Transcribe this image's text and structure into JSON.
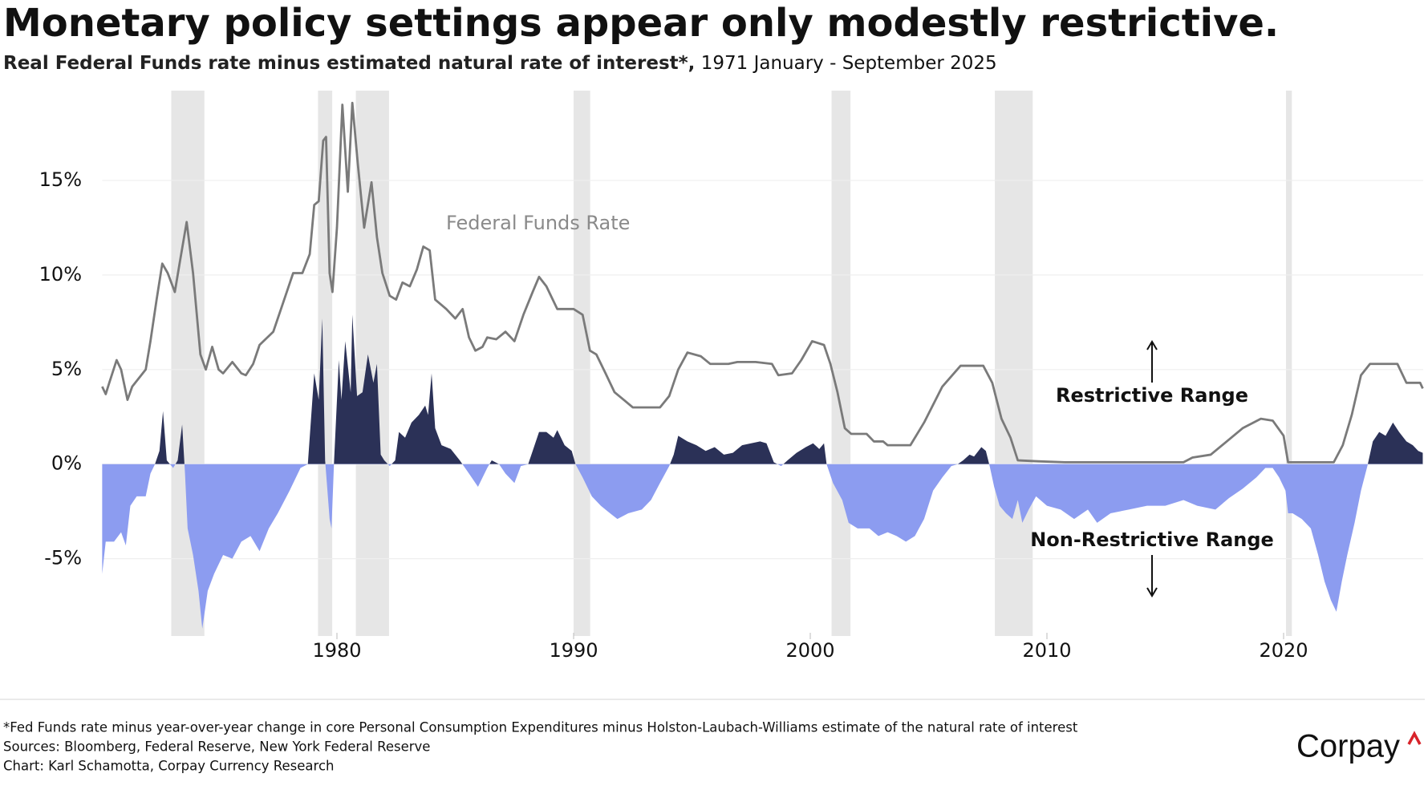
{
  "chart_data": {
    "type": "line",
    "title": "Monetary policy settings appear only modestly restrictive.",
    "subtitle": [
      "Real Federal Funds rate minus estimated natural rate of interest*,",
      "1971 January - September 2025"
    ],
    "xlim": [
      1970,
      2026
    ],
    "xticks": [
      1980,
      1990,
      2000,
      2010,
      2020
    ],
    "ylim": [
      -9,
      20
    ],
    "yticks": [
      {
        "value": -5,
        "label": "-5%"
      },
      {
        "value": 0,
        "label": "0%"
      },
      {
        "value": 5,
        "label": "5%"
      },
      {
        "value": 10,
        "label": "10%"
      },
      {
        "value": 15,
        "label": "15%"
      }
    ],
    "grid": true,
    "recession_color": "#e6e6e6",
    "recessions": [
      [
        1973.0,
        1974.4
      ],
      [
        1979.2,
        1979.8
      ],
      [
        1980.8,
        1982.2
      ],
      [
        1990.0,
        1990.7
      ],
      [
        2000.9,
        2001.7
      ],
      [
        2007.8,
        2009.4
      ],
      [
        2020.1,
        2020.35
      ]
    ],
    "series": [
      {
        "name": "Federal Funds Rate",
        "type": "line",
        "color": "#7a7a7a",
        "x": [
          1970.08,
          1970.23,
          1970.38,
          1970.69,
          1970.88,
          1971.15,
          1971.35,
          1971.92,
          1972.12,
          1972.38,
          1972.62,
          1972.85,
          1973.15,
          1973.35,
          1973.65,
          1973.92,
          1974.23,
          1974.46,
          1974.73,
          1975.0,
          1975.19,
          1975.58,
          1975.96,
          1976.15,
          1976.46,
          1976.73,
          1977.31,
          1977.88,
          1978.15,
          1978.54,
          1978.85,
          1979.04,
          1979.23,
          1979.42,
          1979.54,
          1979.69,
          1979.81,
          1980.0,
          1980.23,
          1980.46,
          1980.65,
          1980.88,
          1981.15,
          1981.46,
          1981.69,
          1981.92,
          1982.23,
          1982.5,
          1982.77,
          1983.08,
          1983.38,
          1983.65,
          1983.92,
          1984.15,
          1984.62,
          1985.0,
          1985.31,
          1985.58,
          1985.85,
          1986.15,
          1986.35,
          1986.73,
          1987.12,
          1987.5,
          1987.88,
          1988.27,
          1988.54,
          1988.85,
          1989.31,
          1990.0,
          1990.38,
          1990.69,
          1990.96,
          1991.35,
          1991.73,
          1992.12,
          1992.5,
          1993.08,
          1993.65,
          1994.04,
          1994.42,
          1994.81,
          1995.38,
          1995.77,
          1996.54,
          1996.92,
          1997.69,
          1998.38,
          1998.65,
          1999.23,
          1999.62,
          2000.08,
          2000.58,
          2000.85,
          2001.15,
          2001.46,
          2001.73,
          2002.38,
          2002.69,
          2003.08,
          2003.27,
          2004.23,
          2004.81,
          2005.58,
          2006.35,
          2007.31,
          2007.69,
          2008.08,
          2008.46,
          2008.77,
          2009.62,
          2010.77,
          2011.92,
          2013.85,
          2015.77,
          2016.15,
          2016.92,
          2017.5,
          2018.27,
          2019.04,
          2019.54,
          2020.0,
          2020.19,
          2021.15,
          2022.12,
          2022.5,
          2022.88,
          2023.27,
          2023.65,
          2024.81,
          2025.19,
          2025.77,
          2025.88
        ],
        "values": [
          4.1,
          3.7,
          4.3,
          5.5,
          5.0,
          3.4,
          4.1,
          5.0,
          6.5,
          8.7,
          10.6,
          10.1,
          9.1,
          10.6,
          12.8,
          10.1,
          5.8,
          5.0,
          6.2,
          5.0,
          4.8,
          5.4,
          4.8,
          4.7,
          5.3,
          6.3,
          7.0,
          9.1,
          10.1,
          10.1,
          11.1,
          13.7,
          13.9,
          17.1,
          17.3,
          10.1,
          9.1,
          12.5,
          19.0,
          14.4,
          19.1,
          15.9,
          12.5,
          14.9,
          12.0,
          10.1,
          8.9,
          8.7,
          9.6,
          9.4,
          10.3,
          11.5,
          11.3,
          8.7,
          8.2,
          7.7,
          8.2,
          6.7,
          6.0,
          6.2,
          6.7,
          6.6,
          7.0,
          6.5,
          7.9,
          9.1,
          9.9,
          9.4,
          8.2,
          8.2,
          7.9,
          6.0,
          5.8,
          4.8,
          3.8,
          3.4,
          3.0,
          3.0,
          3.0,
          3.6,
          5.0,
          5.9,
          5.7,
          5.3,
          5.3,
          5.4,
          5.4,
          5.3,
          4.7,
          4.8,
          5.5,
          6.5,
          6.3,
          5.3,
          3.8,
          1.9,
          1.6,
          1.6,
          1.2,
          1.2,
          1.0,
          1.0,
          2.2,
          4.1,
          5.2,
          5.2,
          4.3,
          2.4,
          1.4,
          0.2,
          0.15,
          0.1,
          0.1,
          0.1,
          0.1,
          0.35,
          0.5,
          1.1,
          1.9,
          2.4,
          2.3,
          1.5,
          0.1,
          0.1,
          0.1,
          1.0,
          2.6,
          4.7,
          5.3,
          5.3,
          4.3,
          4.3,
          4.0
        ]
      },
      {
        "type": "area",
        "color": "#2b3157",
        "negative_color": "#8c9cf0",
        "x": [
          1970.08,
          1970.23,
          1970.58,
          1970.88,
          1971.08,
          1971.27,
          1971.54,
          1971.92,
          1972.12,
          1972.31,
          1972.5,
          1972.65,
          1972.81,
          1973.08,
          1973.27,
          1973.46,
          1973.58,
          1973.69,
          1973.92,
          1974.15,
          1974.31,
          1974.54,
          1974.81,
          1975.19,
          1975.58,
          1975.96,
          1976.35,
          1976.73,
          1977.12,
          1977.5,
          1978.0,
          1978.46,
          1978.77,
          1979.04,
          1979.23,
          1979.38,
          1979.5,
          1979.69,
          1979.77,
          1979.88,
          1980.08,
          1980.19,
          1980.35,
          1980.58,
          1980.65,
          1980.85,
          1981.08,
          1981.31,
          1981.54,
          1981.69,
          1981.85,
          1982.0,
          1982.23,
          1982.46,
          1982.62,
          1982.88,
          1983.15,
          1983.46,
          1983.73,
          1983.85,
          1984.0,
          1984.15,
          1984.42,
          1984.81,
          1985.19,
          1985.58,
          1985.96,
          1986.35,
          1986.54,
          1986.85,
          1987.12,
          1987.5,
          1987.77,
          1988.08,
          1988.27,
          1988.54,
          1988.85,
          1989.15,
          1989.31,
          1989.62,
          1989.92,
          1990.08,
          1990.38,
          1990.77,
          1991.15,
          1991.54,
          1991.85,
          1992.31,
          1992.88,
          1993.27,
          1993.65,
          1994.04,
          1994.23,
          1994.42,
          1994.81,
          1995.19,
          1995.58,
          1995.96,
          1996.35,
          1996.73,
          1997.12,
          1997.5,
          1997.88,
          1998.15,
          1998.46,
          1998.77,
          1999.04,
          1999.42,
          1999.81,
          2000.12,
          2000.38,
          2000.58,
          2000.69,
          2000.96,
          2001.35,
          2001.62,
          2002.0,
          2002.5,
          2002.88,
          2003.27,
          2003.65,
          2004.04,
          2004.42,
          2004.81,
          2005.19,
          2005.58,
          2005.96,
          2006.23,
          2006.46,
          2006.73,
          2006.92,
          2007.23,
          2007.42,
          2007.58,
          2007.77,
          2008.0,
          2008.27,
          2008.54,
          2008.77,
          2008.96,
          2009.23,
          2009.54,
          2010.0,
          2010.58,
          2011.15,
          2011.73,
          2012.12,
          2012.69,
          2013.46,
          2014.23,
          2015.0,
          2015.77,
          2016.35,
          2017.12,
          2017.69,
          2018.27,
          2018.85,
          2019.23,
          2019.54,
          2019.81,
          2020.08,
          2020.19,
          2020.38,
          2020.77,
          2021.15,
          2021.46,
          2021.73,
          2022.0,
          2022.23,
          2022.46,
          2022.69,
          2023.0,
          2023.27,
          2023.54,
          2023.77,
          2024.04,
          2024.31,
          2024.62,
          2024.88,
          2025.19,
          2025.46,
          2025.69,
          2025.88
        ],
        "values": [
          -5.8,
          -4.1,
          -4.1,
          -3.6,
          -4.3,
          -2.2,
          -1.7,
          -1.7,
          -0.5,
          0,
          0.7,
          2.8,
          0.2,
          -0.2,
          0.2,
          2.1,
          -0.5,
          -3.4,
          -4.8,
          -6.7,
          -8.7,
          -6.7,
          -5.8,
          -4.8,
          -5.0,
          -4.1,
          -3.8,
          -4.6,
          -3.4,
          -2.6,
          -1.4,
          -0.2,
          0,
          4.8,
          3.4,
          7.7,
          0.2,
          -2.9,
          -3.4,
          0.2,
          5.5,
          3.4,
          6.5,
          3.8,
          7.9,
          3.6,
          3.8,
          5.8,
          4.3,
          5.3,
          0.5,
          0.2,
          -0.1,
          0.2,
          1.7,
          1.4,
          2.2,
          2.6,
          3.1,
          2.6,
          4.8,
          1.9,
          1.0,
          0.8,
          0.2,
          -0.5,
          -1.2,
          -0.2,
          0.2,
          0,
          -0.5,
          -1.0,
          -0.1,
          0,
          0.7,
          1.7,
          1.7,
          1.4,
          1.8,
          1.0,
          0.7,
          0,
          -0.7,
          -1.7,
          -2.2,
          -2.6,
          -2.9,
          -2.6,
          -2.4,
          -1.9,
          -1.0,
          -0.1,
          0.5,
          1.5,
          1.2,
          1.0,
          0.7,
          0.9,
          0.5,
          0.6,
          1.0,
          1.1,
          1.2,
          1.1,
          0.1,
          -0.1,
          0.2,
          0.6,
          0.9,
          1.1,
          0.8,
          1.1,
          0,
          -1.0,
          -1.9,
          -3.1,
          -3.4,
          -3.4,
          -3.8,
          -3.6,
          -3.8,
          -4.1,
          -3.8,
          -2.9,
          -1.4,
          -0.7,
          -0.1,
          0,
          0.2,
          0.5,
          0.4,
          0.9,
          0.7,
          -0.1,
          -1.2,
          -2.2,
          -2.6,
          -2.9,
          -1.9,
          -3.1,
          -2.4,
          -1.7,
          -2.2,
          -2.4,
          -2.9,
          -2.4,
          -3.1,
          -2.6,
          -2.4,
          -2.2,
          -2.2,
          -1.9,
          -2.2,
          -2.4,
          -1.8,
          -1.3,
          -0.7,
          -0.2,
          -0.2,
          -0.7,
          -1.4,
          -2.6,
          -2.6,
          -2.9,
          -3.4,
          -4.8,
          -6.2,
          -7.2,
          -7.8,
          -6.2,
          -4.8,
          -3.1,
          -1.4,
          -0.1,
          1.2,
          1.7,
          1.5,
          2.2,
          1.7,
          1.2,
          1.0,
          0.7,
          0.6
        ]
      }
    ],
    "annotations": [
      "Restrictive Range",
      "Non-Restrictive Range"
    ],
    "footnotes": [
      "*Fed Funds rate minus year-over-year change in core Personal Consumption Expenditures minus Holston-Laubach-Williams estimate of the natural rate of interest",
      "Sources: Bloomberg, Federal Reserve, New York Federal Reserve",
      "Chart: Karl Schamotta, Corpay Currency Research"
    ],
    "logo": "Corpay"
  }
}
